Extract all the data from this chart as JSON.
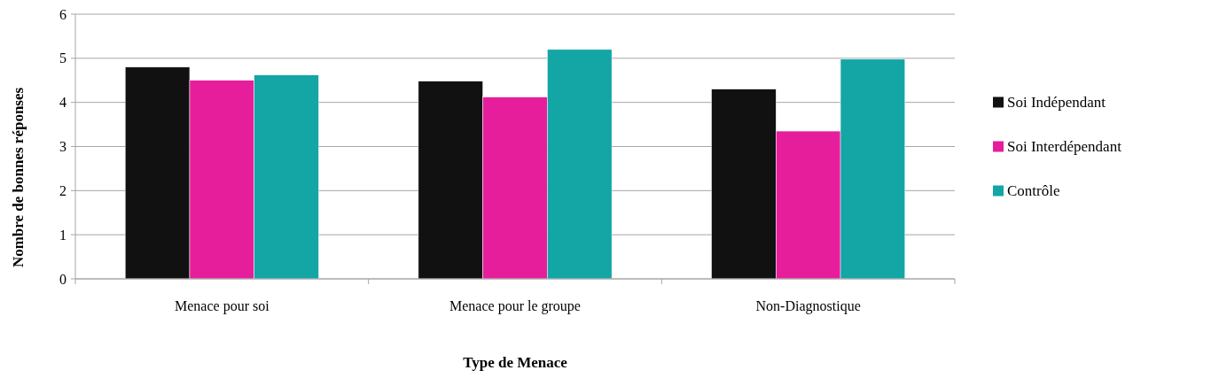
{
  "chart_data": {
    "type": "bar",
    "xlabel": "Type de Menace",
    "ylabel": "Nombre de bonnes réponses",
    "categories": [
      "Menace pour soi",
      "Menace pour le groupe",
      "Non-Diagnostique"
    ],
    "series": [
      {
        "name": "Soi Indépendant",
        "color": "#111111",
        "values": [
          4.8,
          4.48,
          4.3
        ]
      },
      {
        "name": "Soi Interdépendant",
        "color": "#e61e9b",
        "values": [
          4.5,
          4.12,
          3.35
        ]
      },
      {
        "name": "Contrôle",
        "color": "#14a5a5",
        "values": [
          4.62,
          5.2,
          4.98
        ]
      }
    ],
    "ylim": [
      0,
      6
    ],
    "yticks": [
      0,
      1,
      2,
      3,
      4,
      5,
      6
    ],
    "grid": "y",
    "legend": "right"
  }
}
